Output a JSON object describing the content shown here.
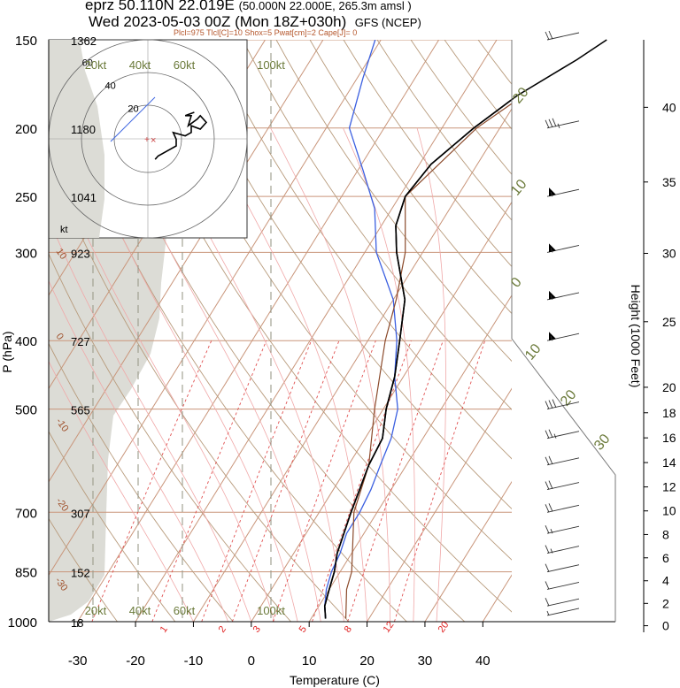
{
  "header": {
    "station": "eprz 50.110N 22.019E",
    "location_detail": "(50.000N 22.000E, 265.3m amsl )",
    "valid_time": "Wed 2023-05-03 00Z (Mon 18Z+030h)",
    "model": "GFS (NCEP)",
    "indices": "Plcl=975 Tlcl[C]=10 Shox=5 Pwat[cm]=2 Cape[J]= 0"
  },
  "colors": {
    "temperature": "#000000",
    "dewpoint": "#3b5fe0",
    "parcel": "#8b4a2b",
    "isotherm_isobar": "#c9957a",
    "dry_adiabat": "#b89b7c",
    "mixing_ratio": "#e05050",
    "moist_adiabat": "#f0a8a8",
    "dewpoint_shade": "#dcdcd6",
    "wind_label_green": "#6b7a3a"
  },
  "chart_data": {
    "type": "line",
    "subtype": "skew-T log-P sounding",
    "xlabel": "Temperature (C)",
    "ylabel": "P (hPa)",
    "y2label": "Height (1000 Feet)",
    "xlim": [
      -35,
      45
    ],
    "ylim": [
      1000,
      150
    ],
    "y_scale": "log",
    "x_ticks": [
      -30,
      -20,
      -10,
      0,
      10,
      20,
      30,
      40
    ],
    "pressure_levels": [
      {
        "p": 150,
        "height_m": "1362"
      },
      {
        "p": 200,
        "height_m": "1180"
      },
      {
        "p": 250,
        "height_m": "1041"
      },
      {
        "p": 300,
        "height_m": "923"
      },
      {
        "p": 400,
        "height_m": "727"
      },
      {
        "p": 500,
        "height_m": "565"
      },
      {
        "p": 700,
        "height_m": "307"
      },
      {
        "p": 850,
        "height_m": "152"
      },
      {
        "p": 1000,
        "height_m": "18"
      }
    ],
    "height_ft_ticks": [
      0,
      2,
      4,
      6,
      8,
      10,
      12,
      14,
      16,
      18,
      20,
      25,
      30,
      35,
      40
    ],
    "skew_isotherm_labels": [
      "-30",
      "-20",
      "-10",
      "0",
      "10",
      "20",
      "30"
    ],
    "skew_isotherm_labels_upper": [
      "20",
      "10",
      "0",
      "10",
      "20",
      "30"
    ],
    "mixing_ratio_labels": [
      "1",
      "2",
      "3",
      "5",
      "8",
      "12",
      "20"
    ],
    "wind_speed_labels": [
      "20kt",
      "40kt",
      "60kt",
      "100kt"
    ],
    "series": [
      {
        "name": "temperature",
        "points": [
          [
            990,
            12.5
          ],
          [
            950,
            11
          ],
          [
            900,
            10
          ],
          [
            850,
            9
          ],
          [
            800,
            7.5
          ],
          [
            700,
            5.5
          ],
          [
            600,
            3.5
          ],
          [
            550,
            3
          ],
          [
            500,
            0.5
          ],
          [
            450,
            -1.5
          ],
          [
            400,
            -4.5
          ],
          [
            350,
            -8
          ],
          [
            300,
            -14.5
          ],
          [
            275,
            -17.5
          ],
          [
            250,
            -19
          ],
          [
            225,
            -18
          ],
          [
            200,
            -14.5
          ],
          [
            180,
            -10.5
          ],
          [
            160,
            -4
          ],
          [
            150,
            -1
          ]
        ]
      },
      {
        "name": "dewpoint",
        "points": [
          [
            990,
            12.5
          ],
          [
            950,
            11
          ],
          [
            900,
            9.5
          ],
          [
            850,
            8.5
          ],
          [
            800,
            8
          ],
          [
            750,
            7
          ],
          [
            700,
            7
          ],
          [
            650,
            6.5
          ],
          [
            600,
            5.5
          ],
          [
            550,
            4.5
          ],
          [
            500,
            2.5
          ],
          [
            450,
            -1.5
          ],
          [
            400,
            -5
          ],
          [
            350,
            -10
          ],
          [
            300,
            -18
          ],
          [
            260,
            -23
          ],
          [
            230,
            -29
          ],
          [
            200,
            -36
          ],
          [
            170,
            -39
          ],
          [
            150,
            -41
          ]
        ]
      },
      {
        "name": "parcel",
        "points": [
          [
            990,
            16
          ],
          [
            900,
            13
          ],
          [
            850,
            12
          ],
          [
            700,
            6
          ],
          [
            600,
            3.5
          ],
          [
            500,
            -1.5
          ],
          [
            400,
            -7
          ],
          [
            350,
            -9.5
          ],
          [
            300,
            -13
          ],
          [
            250,
            -19
          ],
          [
            200,
            -14
          ],
          [
            170,
            -7
          ],
          [
            150,
            -1
          ]
        ]
      }
    ],
    "wind_barbs": [
      {
        "p": 980,
        "speed_kt": 8
      },
      {
        "p": 950,
        "speed_kt": 10
      },
      {
        "p": 900,
        "speed_kt": 12
      },
      {
        "p": 850,
        "speed_kt": 12
      },
      {
        "p": 800,
        "speed_kt": 15
      },
      {
        "p": 750,
        "speed_kt": 17
      },
      {
        "p": 700,
        "speed_kt": 20
      },
      {
        "p": 650,
        "speed_kt": 20
      },
      {
        "p": 600,
        "speed_kt": 22
      },
      {
        "p": 550,
        "speed_kt": 25
      },
      {
        "p": 500,
        "speed_kt": 30
      },
      {
        "p": 400,
        "speed_kt": 55
      },
      {
        "p": 350,
        "speed_kt": 55
      },
      {
        "p": 300,
        "speed_kt": 55
      },
      {
        "p": 250,
        "speed_kt": 55
      },
      {
        "p": 200,
        "speed_kt": 35
      },
      {
        "p": 150,
        "speed_kt": 20
      }
    ],
    "hodograph": {
      "ring_labels": [
        "20",
        "40",
        "60"
      ],
      "unit_label": "kt",
      "points": [
        [
          -4,
          -8
        ],
        [
          -2,
          -6
        ],
        [
          6,
          -2
        ],
        [
          10,
          0
        ],
        [
          10,
          4
        ],
        [
          8,
          8
        ],
        [
          16,
          6
        ],
        [
          20,
          8
        ],
        [
          20,
          12
        ],
        [
          26,
          10
        ],
        [
          30,
          14
        ],
        [
          26,
          18
        ],
        [
          24,
          16
        ],
        [
          18,
          12
        ],
        [
          20,
          18
        ],
        [
          16,
          18
        ],
        [
          22,
          20
        ]
      ]
    }
  }
}
